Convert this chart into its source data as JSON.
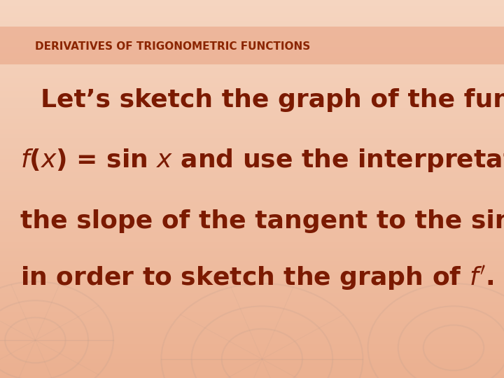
{
  "title": "DERIVATIVES OF TRIGONOMETRIC FUNCTIONS",
  "title_color": "#8B2500",
  "title_fontsize": 11,
  "bg_color_top": "#F5D5C0",
  "bg_color_bottom": "#EBB090",
  "line1": "Let’s sketch the graph of the function",
  "line3": "the slope of the tangent to the sine curve",
  "line4_normal": "in order to sketch the graph of ",
  "text_color": "#7B1A00",
  "body_fontsize": 26,
  "header_stripe_color": "#E8A080",
  "header_stripe_alpha": 0.55,
  "wheel_color": "#C0A090",
  "wheel_alpha": 0.22
}
